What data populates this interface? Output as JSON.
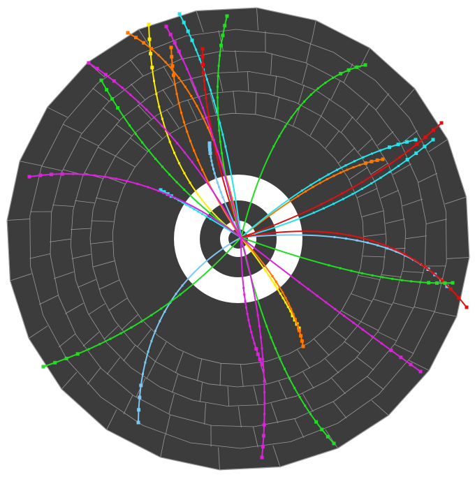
{
  "scene": {
    "background_color": "#ffffff",
    "detector_color": "#3c3c3c",
    "grid_color": "#9a9a9a",
    "inner_ring_color": "#ffffff",
    "core_color": "#3c3c3c",
    "beam_pipe_color": "#ffffff"
  },
  "tracks": [
    {
      "name": "track-yellow-up",
      "color": "#ffee00"
    },
    {
      "name": "track-yellow-down",
      "color": "#ffee00"
    },
    {
      "name": "track-orange-up-left",
      "color": "#ff7700"
    },
    {
      "name": "track-orange-up",
      "color": "#ff7700"
    },
    {
      "name": "track-orange-right",
      "color": "#ff7700"
    },
    {
      "name": "track-orange-down",
      "color": "#ff7700"
    },
    {
      "name": "track-cyan-up",
      "color": "#22e6ee"
    },
    {
      "name": "track-cyan-left",
      "color": "#22e6ee"
    },
    {
      "name": "track-cyan-right",
      "color": "#22e6ee"
    },
    {
      "name": "track-cyan-right-2",
      "color": "#22e6ee"
    },
    {
      "name": "track-lightblue-right",
      "color": "#7cc8f0"
    },
    {
      "name": "track-lightblue-down-left",
      "color": "#7cc8f0"
    },
    {
      "name": "track-lightblue-up",
      "color": "#7cc8f0"
    },
    {
      "name": "track-red-up",
      "color": "#e01010"
    },
    {
      "name": "track-red-right",
      "color": "#e01010"
    },
    {
      "name": "track-red-right-2",
      "color": "#e01010"
    },
    {
      "name": "track-green-up-right",
      "color": "#22dd22"
    },
    {
      "name": "track-green-up",
      "color": "#22dd22"
    },
    {
      "name": "track-green-left",
      "color": "#22dd22"
    },
    {
      "name": "track-green-right",
      "color": "#22dd22"
    },
    {
      "name": "track-green-down-left",
      "color": "#22dd22"
    },
    {
      "name": "track-green-down",
      "color": "#22dd22"
    },
    {
      "name": "track-magenta-left",
      "color": "#dd22dd"
    },
    {
      "name": "track-magenta-up-left",
      "color": "#dd22dd"
    },
    {
      "name": "track-magenta-up",
      "color": "#dd22dd"
    },
    {
      "name": "track-magenta-down-right",
      "color": "#dd22dd"
    },
    {
      "name": "track-magenta-down",
      "color": "#dd22dd"
    },
    {
      "name": "track-magenta-down-2",
      "color": "#dd22dd"
    }
  ]
}
